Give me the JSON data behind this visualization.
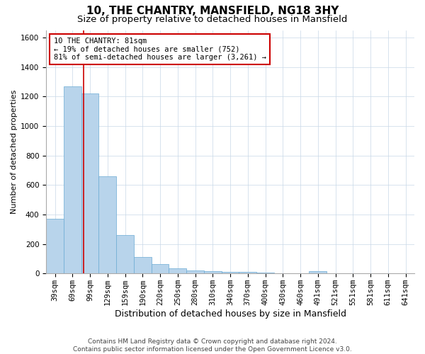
{
  "title": "10, THE CHANTRY, MANSFIELD, NG18 3HY",
  "subtitle": "Size of property relative to detached houses in Mansfield",
  "xlabel": "Distribution of detached houses by size in Mansfield",
  "ylabel": "Number of detached properties",
  "categories": [
    "39sqm",
    "69sqm",
    "99sqm",
    "129sqm",
    "159sqm",
    "190sqm",
    "220sqm",
    "250sqm",
    "280sqm",
    "310sqm",
    "340sqm",
    "370sqm",
    "400sqm",
    "430sqm",
    "460sqm",
    "491sqm",
    "521sqm",
    "551sqm",
    "581sqm",
    "611sqm",
    "641sqm"
  ],
  "values": [
    370,
    1270,
    1220,
    660,
    260,
    110,
    65,
    35,
    22,
    15,
    10,
    12,
    8,
    0,
    0,
    15,
    0,
    0,
    0,
    0,
    0
  ],
  "bar_color": "#b8d4eb",
  "bar_edge_color": "#6aaad4",
  "vline_x_index": 1.65,
  "vline_color": "#cc0000",
  "annotation_line1": "10 THE CHANTRY: 81sqm",
  "annotation_line2": "← 19% of detached houses are smaller (752)",
  "annotation_line3": "81% of semi-detached houses are larger (3,261) →",
  "annotation_box_color": "#cc0000",
  "ylim": [
    0,
    1650
  ],
  "yticks": [
    0,
    200,
    400,
    600,
    800,
    1000,
    1200,
    1400,
    1600
  ],
  "background_color": "#ffffff",
  "grid_color": "#c8d8e8",
  "footer": "Contains HM Land Registry data © Crown copyright and database right 2024.\nContains public sector information licensed under the Open Government Licence v3.0.",
  "title_fontsize": 11,
  "subtitle_fontsize": 9.5,
  "xlabel_fontsize": 9,
  "ylabel_fontsize": 8,
  "tick_fontsize": 7.5,
  "annotation_fontsize": 7.5,
  "footer_fontsize": 6.5
}
